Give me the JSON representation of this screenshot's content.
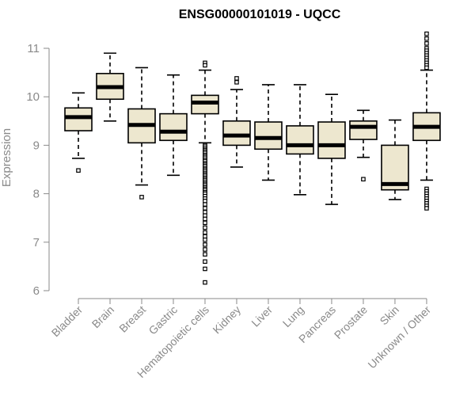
{
  "chart_data": {
    "type": "boxplot",
    "title": "ENSG00000101019 - UQCC",
    "xlabel": "",
    "ylabel": "Expression",
    "ylim": [
      6,
      11.3
    ],
    "yticks": [
      6,
      7,
      8,
      9,
      10,
      11
    ],
    "grid": false,
    "legend": "none",
    "colors": {
      "box_fill": "#ede7cf",
      "box_stroke": "#000000",
      "median": "#000000",
      "axis_text": "#8a8a8a"
    },
    "categories": [
      "Bladder",
      "Brain",
      "Breast",
      "Gastric",
      "Hematopoietic cells",
      "Kidney",
      "Liver",
      "Lung",
      "Pancreas",
      "Prostate",
      "Skin",
      "Unknown / Other"
    ],
    "boxes": [
      {
        "category": "Bladder",
        "whisker_low": 8.73,
        "q1": 9.3,
        "median": 9.58,
        "q3": 9.77,
        "whisker_high": 10.08,
        "outliers": [
          8.48
        ]
      },
      {
        "category": "Brain",
        "whisker_low": 9.5,
        "q1": 9.95,
        "median": 10.2,
        "q3": 10.48,
        "whisker_high": 10.9,
        "outliers": []
      },
      {
        "category": "Breast",
        "whisker_low": 8.18,
        "q1": 9.05,
        "median": 9.42,
        "q3": 9.75,
        "whisker_high": 10.6,
        "outliers": [
          7.93
        ]
      },
      {
        "category": "Gastric",
        "whisker_low": 8.38,
        "q1": 9.1,
        "median": 9.28,
        "q3": 9.65,
        "whisker_high": 10.45,
        "outliers": []
      },
      {
        "category": "Hematopoietic cells",
        "whisker_low": 9.05,
        "q1": 9.65,
        "median": 9.88,
        "q3": 10.03,
        "whisker_high": 10.55,
        "outliers": [
          10.7,
          10.65,
          9.0,
          8.97,
          8.93,
          8.9,
          8.87,
          8.84,
          8.8,
          8.77,
          8.74,
          8.7,
          8.67,
          8.63,
          8.6,
          8.57,
          8.53,
          8.5,
          8.47,
          8.43,
          8.4,
          8.37,
          8.33,
          8.3,
          8.27,
          8.23,
          8.2,
          8.17,
          8.13,
          8.1,
          8.07,
          8.03,
          8.0,
          7.95,
          7.9,
          7.85,
          7.78,
          7.7,
          7.62,
          7.55,
          7.48,
          7.4,
          7.3,
          7.2,
          7.12,
          7.05,
          6.95,
          6.85,
          6.75,
          6.6,
          6.45,
          6.17
        ]
      },
      {
        "category": "Kidney",
        "whisker_low": 8.55,
        "q1": 9.0,
        "median": 9.2,
        "q3": 9.5,
        "whisker_high": 10.15,
        "outliers": [
          10.38,
          10.3
        ]
      },
      {
        "category": "Liver",
        "whisker_low": 8.28,
        "q1": 8.92,
        "median": 9.15,
        "q3": 9.48,
        "whisker_high": 10.25,
        "outliers": []
      },
      {
        "category": "Lung",
        "whisker_low": 7.98,
        "q1": 8.82,
        "median": 9.0,
        "q3": 9.4,
        "whisker_high": 10.25,
        "outliers": []
      },
      {
        "category": "Pancreas",
        "whisker_low": 7.78,
        "q1": 8.73,
        "median": 9.0,
        "q3": 9.48,
        "whisker_high": 10.05,
        "outliers": []
      },
      {
        "category": "Prostate",
        "whisker_low": 8.75,
        "q1": 9.12,
        "median": 9.38,
        "q3": 9.5,
        "whisker_high": 9.72,
        "outliers": [
          8.3
        ]
      },
      {
        "category": "Skin",
        "whisker_low": 7.88,
        "q1": 8.08,
        "median": 8.2,
        "q3": 9.0,
        "whisker_high": 9.52,
        "outliers": []
      },
      {
        "category": "Unknown / Other",
        "whisker_low": 8.28,
        "q1": 9.1,
        "median": 9.38,
        "q3": 9.67,
        "whisker_high": 10.55,
        "outliers": [
          11.3,
          11.2,
          11.1,
          11.0,
          10.95,
          10.9,
          10.85,
          10.8,
          10.75,
          10.7,
          10.65,
          10.6,
          8.1,
          8.05,
          8.0,
          7.95,
          7.9,
          7.85,
          7.8,
          7.75,
          7.7
        ]
      }
    ]
  }
}
